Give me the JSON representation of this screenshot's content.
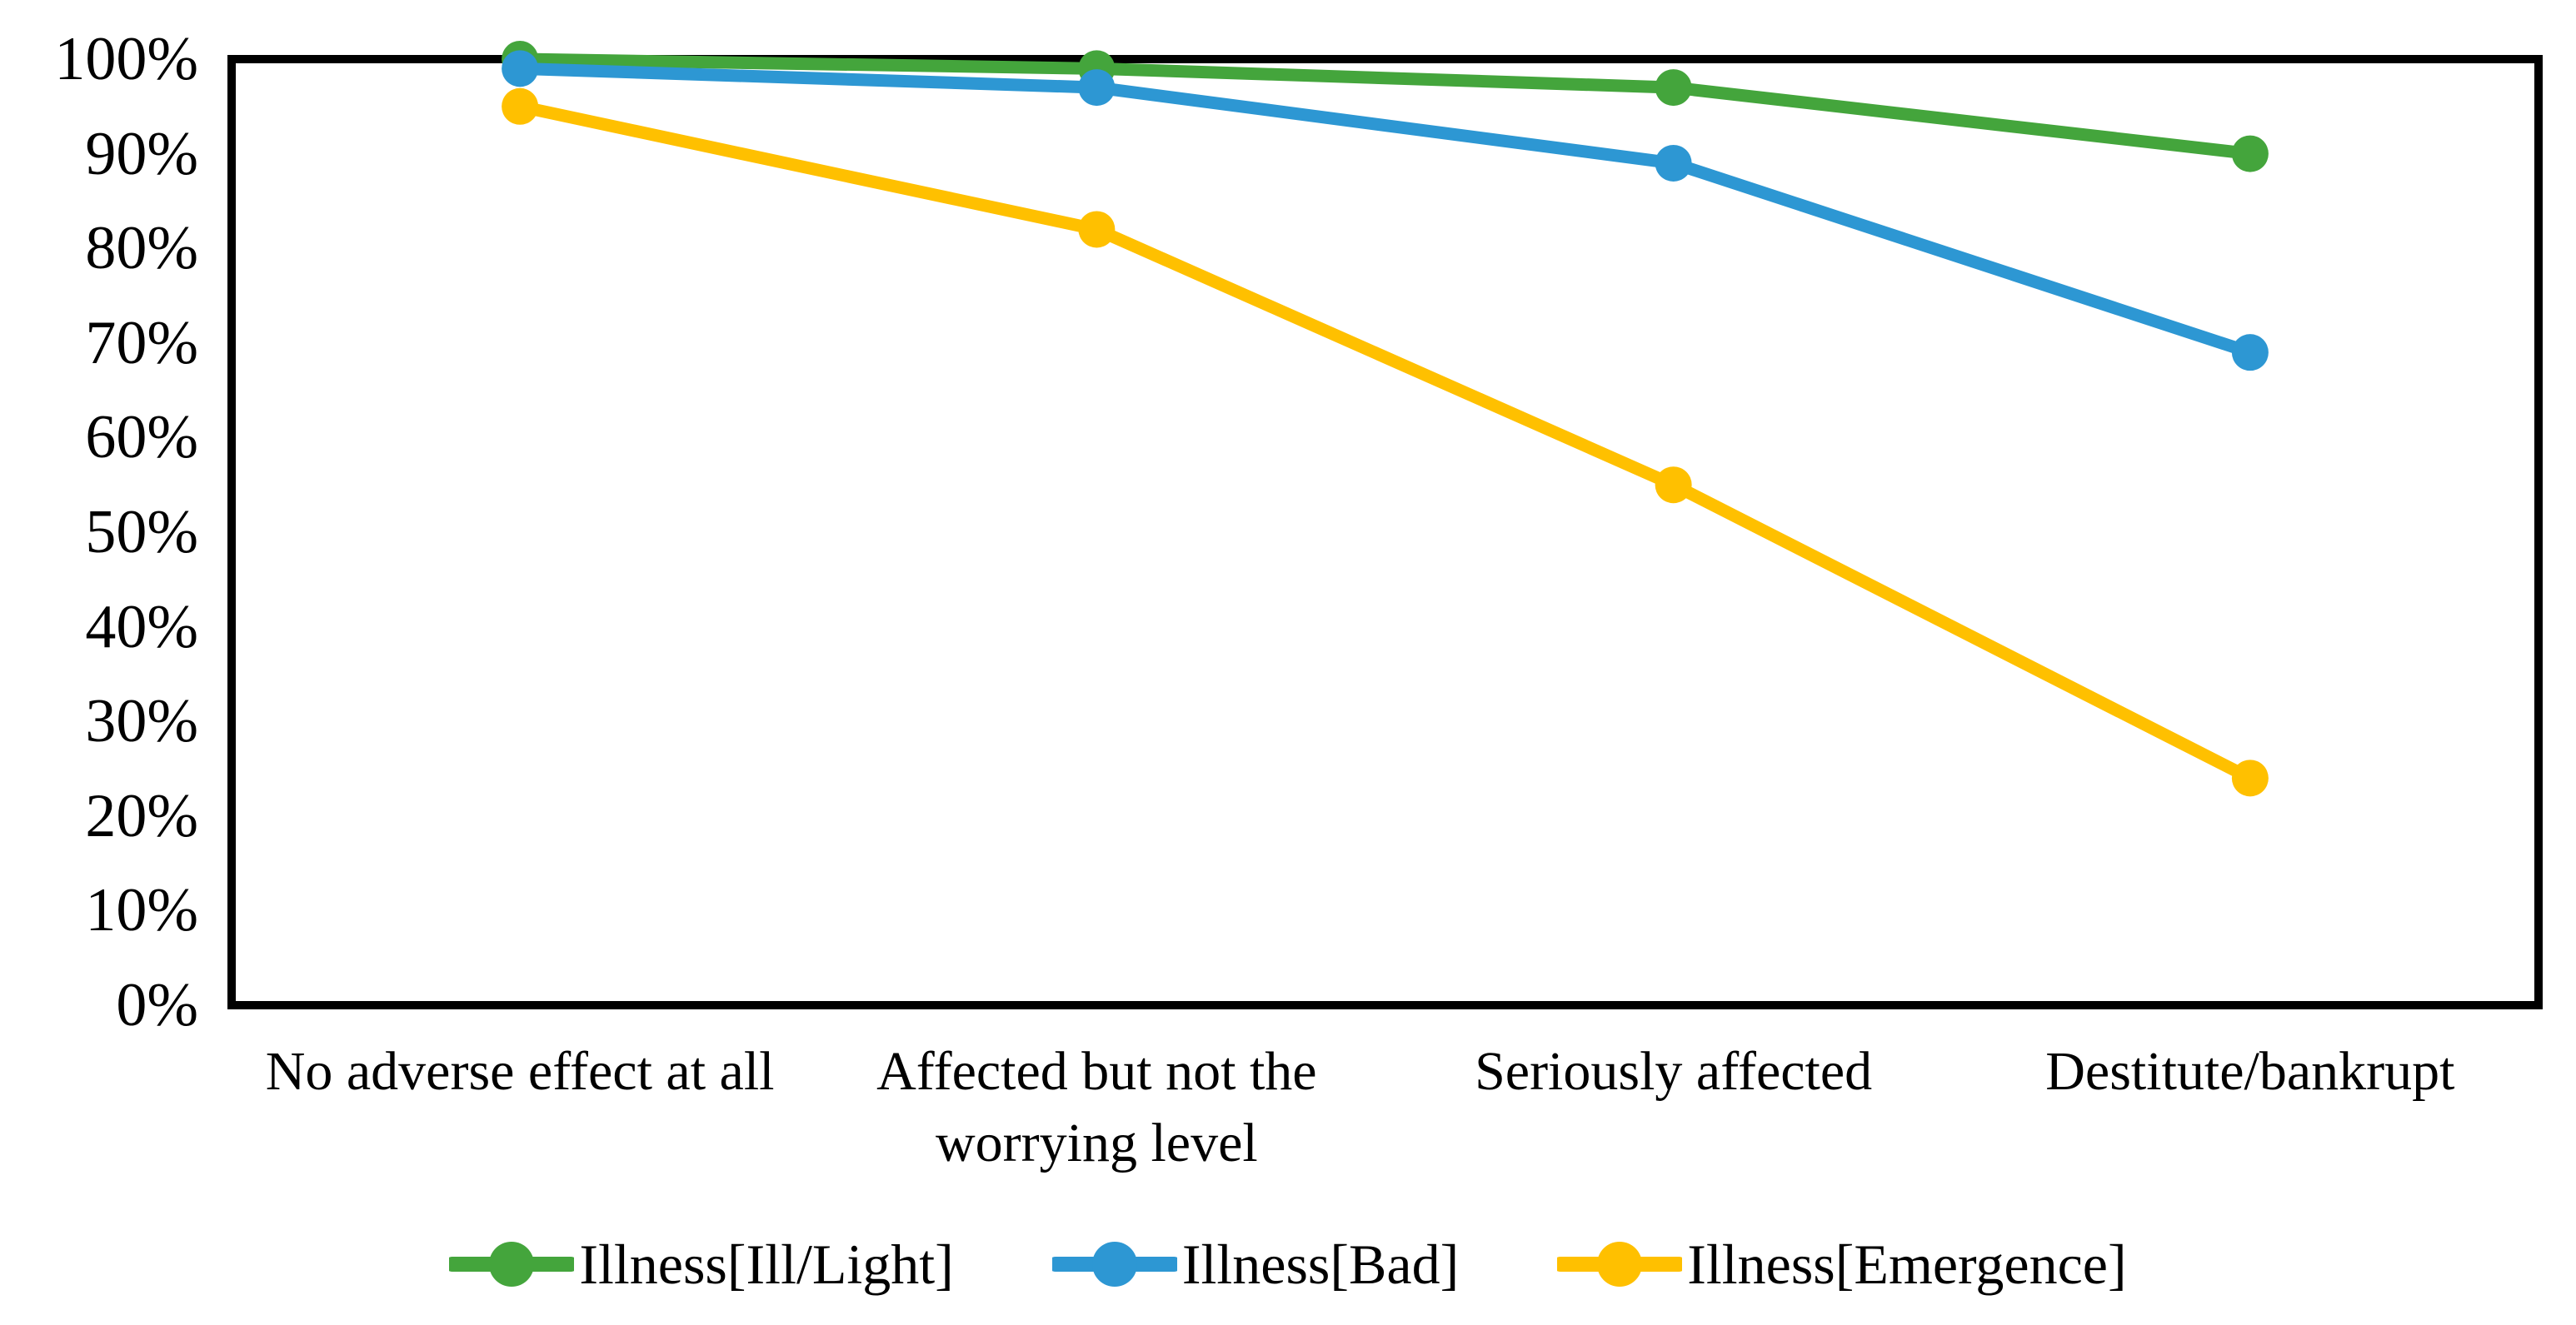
{
  "chart_data": {
    "type": "line",
    "title": "",
    "xlabel": "",
    "ylabel": "",
    "categories": [
      "No adverse effect at all",
      "Affected but not the worrying level",
      "Seriously affected",
      "Destitute/bankrupt"
    ],
    "series": [
      {
        "name": "Illness[Ill/Light]",
        "color": "#44A53C",
        "values": [
          100,
          99,
          97,
          90
        ]
      },
      {
        "name": "Illness[Bad]",
        "color": "#2D97D3",
        "values": [
          99,
          97,
          89,
          69
        ]
      },
      {
        "name": "Illness[Emergence]",
        "color": "#FFC000",
        "values": [
          95,
          82,
          55,
          24
        ]
      }
    ],
    "ylim": [
      0,
      100
    ],
    "y_tick_step": 10,
    "y_ticks": [
      "0%",
      "10%",
      "20%",
      "30%",
      "40%",
      "50%",
      "60%",
      "70%",
      "80%",
      "90%",
      "100%"
    ],
    "grid": false,
    "legend_position": "bottom",
    "axis_color": "#000000",
    "background_color": "#FFFFFF"
  }
}
